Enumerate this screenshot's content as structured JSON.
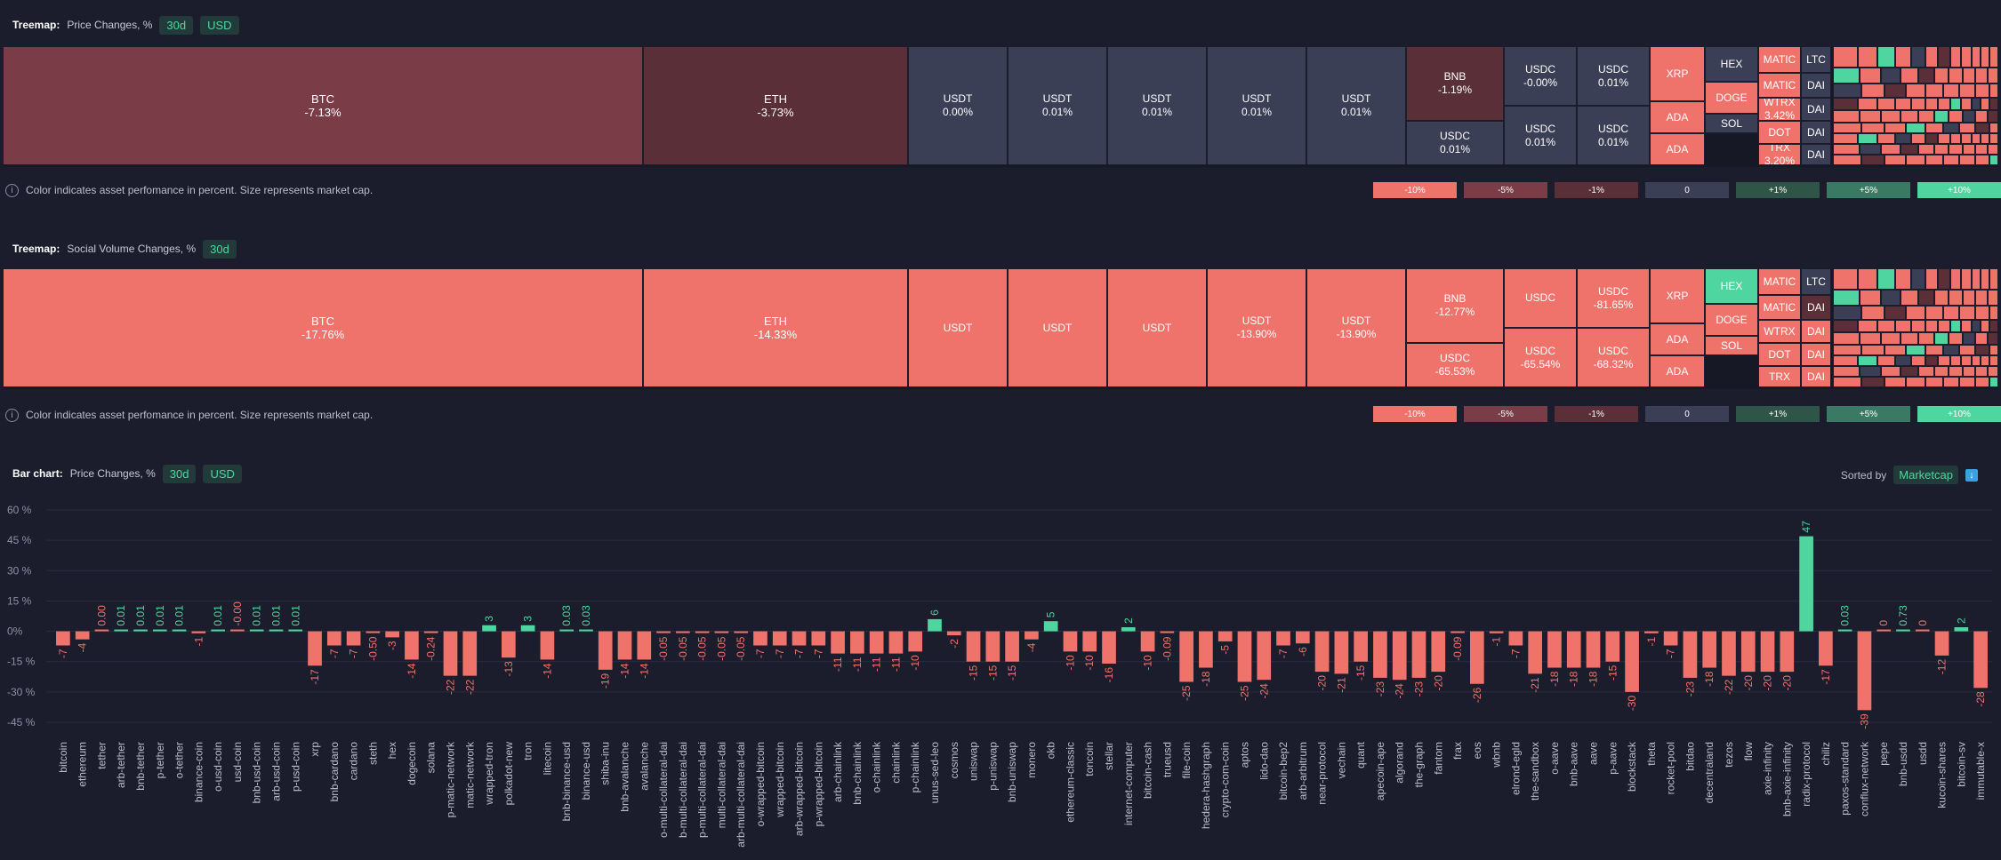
{
  "colors": {
    "neg_strong": "#7a3a44",
    "neg_mid": "#5e3038",
    "neutral": "#3a3f56",
    "pos": "#4fd6a0",
    "salmon": "#ef736b",
    "bar_neg": "#ef736b",
    "bar_pos": "#4fd6a0"
  },
  "treemap1": {
    "label": "Treemap:",
    "title": "Price Changes, %",
    "pill_period": "30d",
    "pill_currency": "USD",
    "footnote": "Color indicates asset perfomance in percent. Size represents market cap.",
    "legend": [
      "-10%",
      "-5%",
      "-1%",
      "0",
      "+1%",
      "+5%",
      "+10%"
    ],
    "cells": [
      {
        "name": "BTC",
        "value": "-7.13%"
      },
      {
        "name": "ETH",
        "value": "-3.73%"
      },
      {
        "name": "USDT",
        "value": "0.00%"
      },
      {
        "name": "USDT",
        "value": "0.01%"
      },
      {
        "name": "USDT",
        "value": "0.01%"
      },
      {
        "name": "USDT",
        "value": "0.01%"
      },
      {
        "name": "USDT",
        "value": "0.01%"
      },
      {
        "name": "BNB",
        "value": "-1.19%"
      },
      {
        "name": "USDC",
        "value": "0.01%"
      },
      {
        "name": "USDC",
        "value": "-0.00%"
      },
      {
        "name": "USDC",
        "value": "0.01%"
      },
      {
        "name": "USDC",
        "value": "0.01%"
      },
      {
        "name": "USDC",
        "value": "0.01%"
      },
      {
        "name": "XRP",
        "value": ""
      },
      {
        "name": "ADA",
        "value": ""
      },
      {
        "name": "ADA",
        "value": ""
      },
      {
        "name": "HEX",
        "value": ""
      },
      {
        "name": "DOGE",
        "value": ""
      },
      {
        "name": "SOL",
        "value": ""
      },
      {
        "name": "MATIC",
        "value": ""
      },
      {
        "name": "MATIC",
        "value": ""
      },
      {
        "name": "WTRX",
        "value": "3.42%"
      },
      {
        "name": "DOT",
        "value": ""
      },
      {
        "name": "TRX",
        "value": "3.20%"
      },
      {
        "name": "LTC",
        "value": ""
      },
      {
        "name": "DAI",
        "value": ""
      },
      {
        "name": "DAI",
        "value": ""
      },
      {
        "name": "DAI",
        "value": ""
      },
      {
        "name": "DAI",
        "value": ""
      }
    ]
  },
  "treemap2": {
    "label": "Treemap:",
    "title": "Social Volume Changes, %",
    "pill_period": "30d",
    "footnote": "Color indicates asset perfomance in percent. Size represents market cap.",
    "legend": [
      "-10%",
      "-5%",
      "-1%",
      "0",
      "+1%",
      "+5%",
      "+10%"
    ],
    "cells": [
      {
        "name": "BTC",
        "value": "-17.76%"
      },
      {
        "name": "ETH",
        "value": "-14.33%"
      },
      {
        "name": "USDT",
        "value": ""
      },
      {
        "name": "USDT",
        "value": ""
      },
      {
        "name": "USDT",
        "value": ""
      },
      {
        "name": "USDT",
        "value": "-13.90%"
      },
      {
        "name": "USDT",
        "value": "-13.90%"
      },
      {
        "name": "BNB",
        "value": "-12.77%"
      },
      {
        "name": "USDC",
        "value": "-65.53%"
      },
      {
        "name": "USDC",
        "value": ""
      },
      {
        "name": "USDC",
        "value": "-65.54%"
      },
      {
        "name": "USDC",
        "value": "-81.65%"
      },
      {
        "name": "USDC",
        "value": "-68.32%"
      },
      {
        "name": "XRP",
        "value": ""
      },
      {
        "name": "ADA",
        "value": ""
      },
      {
        "name": "ADA",
        "value": ""
      },
      {
        "name": "HEX",
        "value": ""
      },
      {
        "name": "DOGE",
        "value": ""
      },
      {
        "name": "SOL",
        "value": ""
      },
      {
        "name": "MATIC",
        "value": ""
      },
      {
        "name": "MATIC",
        "value": ""
      },
      {
        "name": "WTRX",
        "value": ""
      },
      {
        "name": "DOT",
        "value": ""
      },
      {
        "name": "TRX",
        "value": ""
      },
      {
        "name": "LTC",
        "value": ""
      },
      {
        "name": "DAI",
        "value": ""
      },
      {
        "name": "DAI",
        "value": ""
      },
      {
        "name": "DAI",
        "value": ""
      },
      {
        "name": "DAI",
        "value": ""
      }
    ]
  },
  "barchart": {
    "label": "Bar chart:",
    "title": "Price Changes, %",
    "pill_period": "30d",
    "pill_currency": "USD",
    "sorted_by": "Sorted by",
    "sort_value": "Marketcap"
  },
  "chart_data": {
    "type": "bar",
    "ylim": [
      -45,
      60
    ],
    "yticks": [
      "60 %",
      "45 %",
      "30 %",
      "15 %",
      "0%",
      "-15 %",
      "-30 %",
      "-45 %"
    ],
    "ytick_values": [
      60,
      45,
      30,
      15,
      0,
      -15,
      -30,
      -45
    ],
    "categories": [
      "bitcoin",
      "ethereum",
      "tether",
      "arb-tether",
      "bnb-tether",
      "p-tether",
      "o-tether",
      "binance-coin",
      "o-usd-coin",
      "usd-coin",
      "bnb-usd-coin",
      "arb-usd-coin",
      "p-usd-coin",
      "xrp",
      "bnb-cardano",
      "cardano",
      "steth",
      "hex",
      "dogecoin",
      "solana",
      "p-matic-network",
      "matic-network",
      "wrapped-tron",
      "polkadot-new",
      "tron",
      "litecoin",
      "bnb-binance-usd",
      "binance-usd",
      "shiba-inu",
      "bnb-avalanche",
      "avalanche",
      "o-multi-collateral-dai",
      "b-multi-collateral-dai",
      "p-multi-collateral-dai",
      "multi-collateral-dai",
      "arb-multi-collateral-dai",
      "o-wrapped-bitcoin",
      "wrapped-bitcoin",
      "arb-wrapped-bitcoin",
      "p-wrapped-bitcoin",
      "arb-chainlink",
      "bnb-chainlink",
      "o-chainlink",
      "chainlink",
      "p-chainlink",
      "unus-sed-leo",
      "cosmos",
      "uniswap",
      "p-uniswap",
      "bnb-uniswap",
      "monero",
      "okb",
      "ethereum-classic",
      "toncoin",
      "stellar",
      "internet-computer",
      "bitcoin-cash",
      "trueusd",
      "file-coin",
      "hedera-hashgraph",
      "crypto-com-coin",
      "aptos",
      "lido-dao",
      "bitcoin-bep2",
      "arb-arbitrum",
      "near-protocol",
      "vechain",
      "quant",
      "apecoin-ape",
      "algorand",
      "the-graph",
      "fantom",
      "frax",
      "eos",
      "wbnb",
      "elrond-egld",
      "the-sandbox",
      "o-aave",
      "bnb-aave",
      "aave",
      "p-aave",
      "blockstack",
      "theta",
      "rocket-pool",
      "bitdao",
      "decentraland",
      "tezos",
      "flow",
      "axie-infinity",
      "bnb-axie-infinity",
      "radix-protocol",
      "chiliz",
      "paxos-standard",
      "conflux-network",
      "pepe",
      "bnb-usdd",
      "usdd",
      "kucoin-shares",
      "bitcoin-sv",
      "immutable-x"
    ],
    "values": [
      -7,
      -4,
      0.0,
      0.01,
      0.01,
      0.01,
      0.01,
      -1,
      0.01,
      -0.0,
      0.01,
      0.01,
      0.01,
      -17,
      -7,
      -7,
      -0.5,
      -3,
      -14,
      -0.24,
      -22,
      -22,
      3,
      -13,
      3,
      -14,
      0.03,
      0.03,
      -19,
      -14,
      -14,
      -0.05,
      -0.05,
      -0.05,
      -0.05,
      -0.05,
      -7,
      -7,
      -7,
      -7,
      -11,
      -11,
      -11,
      -11,
      -10,
      6,
      -2,
      -15,
      -15,
      -15,
      -4,
      5,
      -10,
      -10,
      -16,
      2,
      -10,
      -0.09,
      -25,
      -18,
      -5,
      -25,
      -24,
      -7,
      -6,
      -20,
      -21,
      -15,
      -23,
      -24,
      -23,
      -20,
      -0.09,
      -26,
      -1,
      -7,
      -21,
      -18,
      -18,
      -18,
      -15,
      -30,
      -1,
      -7,
      -23,
      -18,
      -22,
      -20,
      -20,
      -20,
      47,
      -17,
      0.03,
      -39,
      0,
      0.73,
      0,
      -12,
      2,
      -28
    ],
    "labels": [
      "-7",
      "-4",
      "0.00",
      "0.01",
      "0.01",
      "0.01",
      "0.01",
      "-1",
      "0.01",
      "-0.00",
      "0.01",
      "0.01",
      "0.01",
      "-17",
      "-7",
      "-7",
      "-0.50",
      "-3",
      "-14",
      "-0.24",
      "-22",
      "-22",
      "3",
      "-13",
      "3",
      "-14",
      "0.03",
      "0.03",
      "-19",
      "-14",
      "-14",
      "-0.05",
      "-0.05",
      "-0.05",
      "-0.05",
      "-0.05",
      "-7",
      "-7",
      "-7",
      "-7",
      "-11",
      "-11",
      "-11",
      "-11",
      "-10",
      "6",
      "-2",
      "-15",
      "-15",
      "-15",
      "-4",
      "5",
      "-10",
      "-10",
      "-16",
      "2",
      "-10",
      "-0.09",
      "-25",
      "-18",
      "-5",
      "-25",
      "-24",
      "-7",
      "-6",
      "-20",
      "-21",
      "-15",
      "-23",
      "-24",
      "-23",
      "-20",
      "-0.09",
      "-26",
      "-1",
      "-7",
      "-21",
      "-18",
      "-18",
      "-18",
      "-15",
      "-30",
      "-1",
      "-7",
      "-23",
      "-18",
      "-22",
      "-20",
      "-20",
      "-20",
      "47",
      "-17",
      "0.03",
      "-39",
      "0",
      "0.73",
      "0",
      "-12",
      "2",
      "-28"
    ],
    "grid": true
  }
}
